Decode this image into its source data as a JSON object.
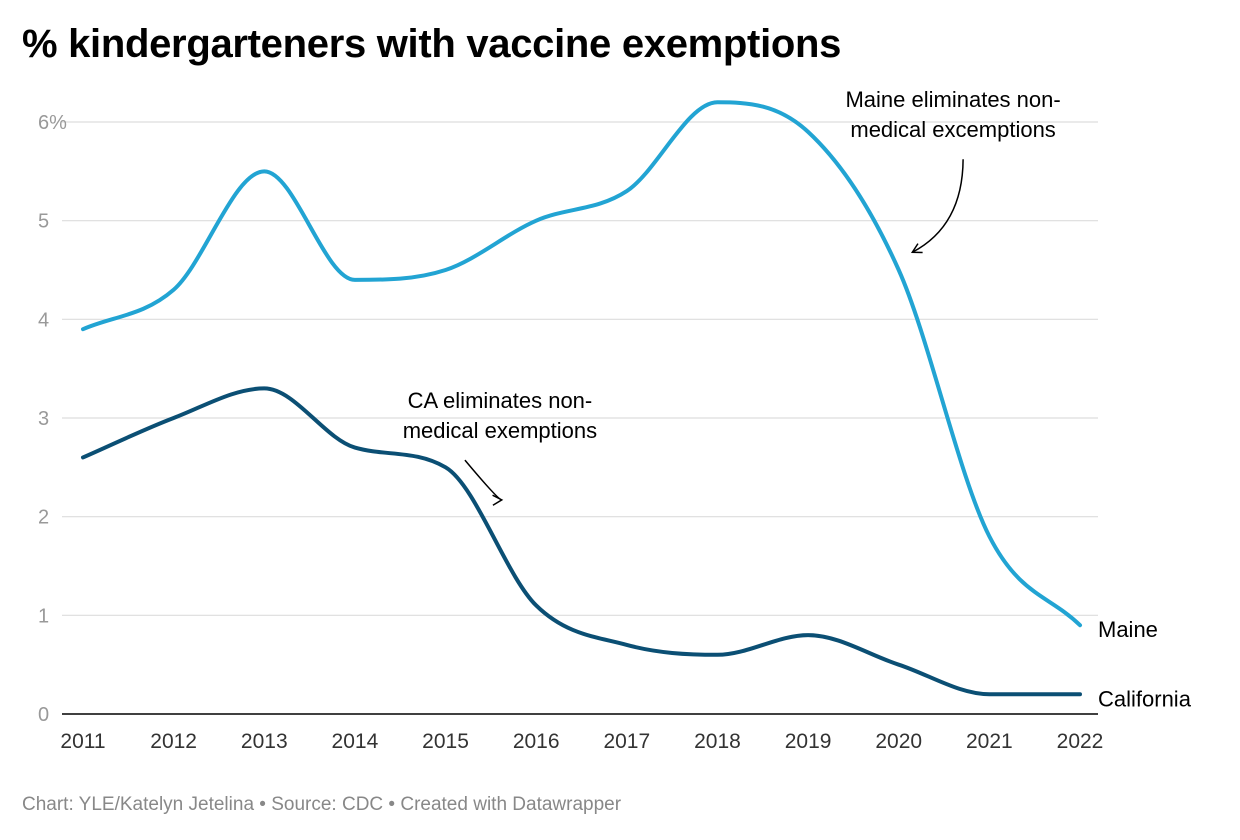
{
  "title": "% kindergarteners with vaccine exemptions",
  "footer": "Chart: YLE/Katelyn Jetelina • Source: CDC • Created with Datawrapper",
  "chart_data": {
    "type": "line",
    "title": "% kindergarteners with vaccine exemptions",
    "xlabel": "",
    "ylabel": "",
    "x": [
      2011,
      2012,
      2013,
      2014,
      2015,
      2016,
      2017,
      2018,
      2019,
      2020,
      2021,
      2022
    ],
    "ylim": [
      0,
      6
    ],
    "yticks": [
      0,
      1,
      2,
      3,
      4,
      5,
      6
    ],
    "ytick_labels": [
      "0",
      "1",
      "2",
      "3",
      "4",
      "5",
      "6%"
    ],
    "grid": true,
    "legend": "direct labels at line ends",
    "series": [
      {
        "name": "Maine",
        "color": "#22a4d3",
        "values": [
          3.9,
          4.3,
          5.5,
          4.4,
          4.5,
          5.0,
          5.3,
          6.2,
          5.9,
          4.5,
          1.8,
          0.9
        ]
      },
      {
        "name": "California",
        "color": "#0b4f74",
        "values": [
          2.6,
          3.0,
          3.3,
          2.7,
          2.5,
          1.1,
          0.7,
          0.6,
          0.8,
          0.5,
          0.2,
          0.2
        ]
      }
    ],
    "annotations": [
      {
        "text_lines": [
          "Maine eliminates non-",
          "medical excemptions"
        ],
        "x": 2020.15,
        "y": 4.68,
        "text_anchor_x": 2020.6,
        "text_anchor_y": 6.15
      },
      {
        "text_lines": [
          "CA eliminates non-",
          "medical exemptions"
        ],
        "x": 2015.62,
        "y": 2.17,
        "text_anchor_x": 2015.6,
        "text_anchor_y": 3.1
      }
    ]
  }
}
